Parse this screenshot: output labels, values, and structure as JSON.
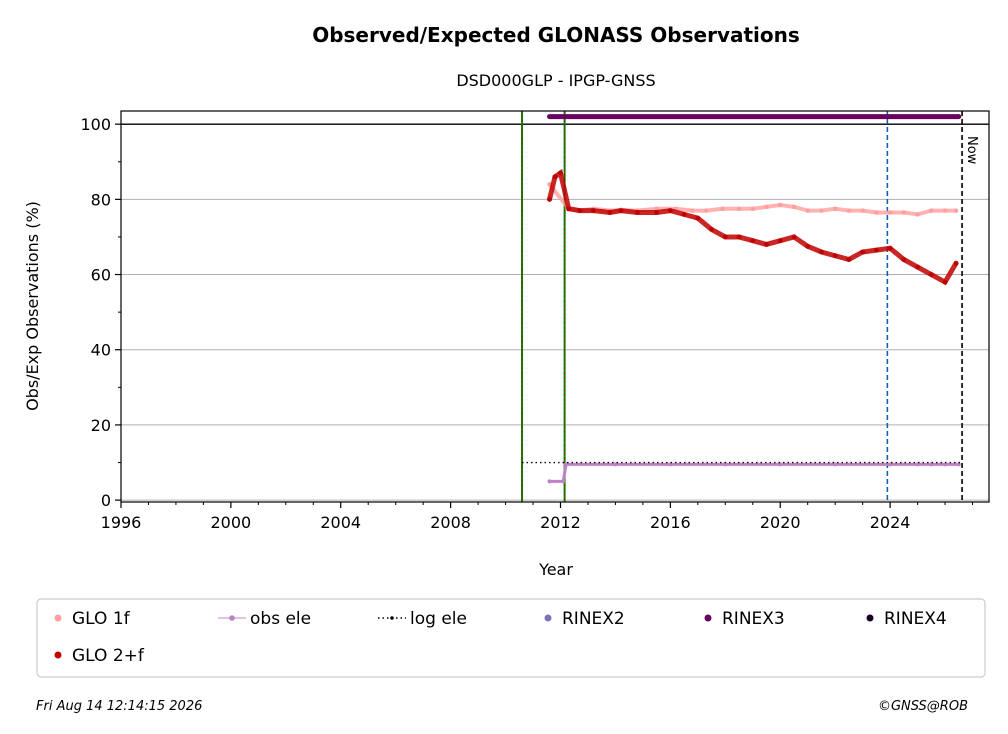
{
  "chart_data": {
    "type": "scatter",
    "title": "Observed/Expected GLONASS Observations",
    "subtitle": "DSD000GLP - IPGP-GNSS",
    "xlabel": "Year",
    "ylabel": "Obs/Exp Observations (%)",
    "xlim": [
      1996,
      2027.6
    ],
    "ylim": [
      -0.5,
      103.5
    ],
    "x_ticks": [
      1996,
      2000,
      2004,
      2008,
      2012,
      2016,
      2020,
      2024
    ],
    "x_tick_labels": [
      "1996",
      "2000",
      "2004",
      "2008",
      "2012",
      "2016",
      "2020",
      "2024"
    ],
    "y_ticks": [
      0,
      20,
      40,
      60,
      80,
      100
    ],
    "y_tick_labels": [
      "0",
      "20",
      "40",
      "60",
      "80",
      "100"
    ],
    "grid": "horizontal",
    "reference_line_y": 100,
    "vertical_lines": [
      {
        "x": 2010.6,
        "style": "green-red-dotted"
      },
      {
        "x": 2012.15,
        "style": "green-red-dotted"
      },
      {
        "x": 2023.9,
        "style": "blue-dashed"
      },
      {
        "x": 2026.62,
        "style": "black-dashed",
        "label": "Now"
      }
    ],
    "legend_position": "bottom",
    "series": [
      {
        "name": "GLO 1f",
        "color": "#ff9f9f",
        "marker": "dot",
        "x": [
          2011.6,
          2012.3,
          2012.7,
          2013.2,
          2013.8,
          2014.2,
          2014.8,
          2015.5,
          2016.2,
          2016.8,
          2017.3,
          2017.9,
          2018.5,
          2019.0,
          2019.5,
          2020.0,
          2020.5,
          2021.0,
          2021.5,
          2022.0,
          2022.5,
          2023.0,
          2023.5,
          2024.0,
          2024.5,
          2025.0,
          2025.5,
          2026.0,
          2026.4
        ],
        "y": [
          84,
          77.5,
          77,
          77.5,
          77,
          77.2,
          77,
          77.5,
          77.5,
          77,
          77,
          77.5,
          77.5,
          77.5,
          78,
          78.5,
          78,
          77,
          77,
          77.5,
          77,
          77,
          76.5,
          76.5,
          76.5,
          76,
          77,
          77,
          77
        ]
      },
      {
        "name": "GLO 2+f",
        "color": "#c00000",
        "marker": "dot",
        "x": [
          2011.6,
          2011.8,
          2012.0,
          2012.3,
          2012.7,
          2013.2,
          2013.8,
          2014.2,
          2014.8,
          2015.5,
          2016.0,
          2016.5,
          2017.0,
          2017.5,
          2018.0,
          2018.5,
          2019.0,
          2019.5,
          2020.0,
          2020.5,
          2021.0,
          2021.5,
          2022.0,
          2022.5,
          2023.0,
          2023.5,
          2024.0,
          2024.5,
          2025.0,
          2025.5,
          2026.0,
          2026.4
        ],
        "y": [
          80,
          86,
          87,
          77.5,
          77,
          77,
          76.5,
          77,
          76.5,
          76.5,
          77,
          76,
          75,
          72,
          70,
          70,
          69,
          68,
          69,
          70,
          67.5,
          66,
          65,
          64,
          66,
          66.5,
          67,
          64,
          62,
          60,
          58,
          63
        ]
      },
      {
        "name": "obs ele",
        "color": "#c080c8",
        "marker": "line-dot",
        "x": [
          2011.6,
          2012.1,
          2012.2,
          2014.0,
          2016.0,
          2018.0,
          2020.0,
          2022.0,
          2024.0,
          2025.0,
          2025.5,
          2026.0,
          2026.5
        ],
        "y": [
          5,
          5,
          9.5,
          9.5,
          9.5,
          9.5,
          9.5,
          9.5,
          9.5,
          9.5,
          9.5,
          9.5,
          9.5
        ]
      },
      {
        "name": "log ele",
        "color": "#000000",
        "marker": "dotted-line",
        "x": [
          2010.6,
          2026.62
        ],
        "y": [
          10,
          10
        ]
      },
      {
        "name": "RINEX2",
        "color": "#8070b8",
        "marker": "dot",
        "x": [],
        "y": []
      },
      {
        "name": "RINEX3",
        "color": "#6a0060",
        "marker": "dot",
        "x": [
          2011.6,
          2026.5
        ],
        "y": [
          102,
          102
        ]
      },
      {
        "name": "RINEX4",
        "color": "#1a0020",
        "marker": "dot",
        "x": [],
        "y": []
      }
    ]
  },
  "footer": {
    "timestamp": "Fri Aug 14 12:14:15 2026",
    "credit": "©GNSS@ROB"
  }
}
